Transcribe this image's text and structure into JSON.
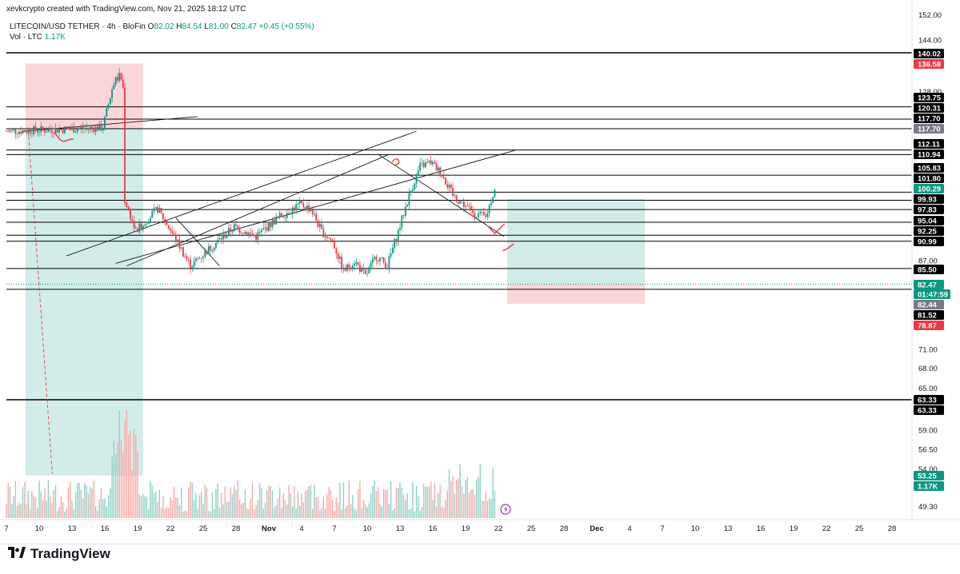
{
  "header": {
    "credit": "xevkcrypto created with TradingView.com, Nov 21, 2025 18:12 UTC"
  },
  "symbol": {
    "name": "LITECOIN/USD TETHER · 4h · BloFin",
    "o_label": "O",
    "o": "82.02",
    "h_label": "H",
    "h": "84.54",
    "l_label": "L",
    "l": "81.00",
    "c_label": "C",
    "c": "82.47",
    "change": "+0.45 (+0.55%)"
  },
  "volume": {
    "label": "Vol · LTC",
    "value": "1.17K"
  },
  "logo": {
    "text": "TradingView"
  },
  "icons": {
    "logo": "tradingview-logo-icon",
    "flash": "flash-icon"
  },
  "colors": {
    "up": "#089981",
    "down": "#f23645",
    "long_profit_zone": "#b2dfdb",
    "short_loss_zone": "#f8c8cc",
    "current_price": "#089981"
  },
  "chart_data": {
    "type": "candlestick",
    "symbol": "LITECOIN/USD TETHER",
    "timeframe": "4h",
    "x_ticks": [
      "7",
      "10",
      "13",
      "16",
      "19",
      "22",
      "25",
      "28",
      "Nov",
      "4",
      "7",
      "10",
      "13",
      "16",
      "19",
      "22",
      "25",
      "28",
      "Dec",
      "4",
      "7",
      "10",
      "13",
      "16",
      "19",
      "22",
      "25",
      "28"
    ],
    "y_ticks": [
      "152.00",
      "144.00",
      "128.00",
      "87.00",
      "71.00",
      "68.00",
      "65.00",
      "59.00",
      "56.50",
      "54.00",
      "49.30"
    ],
    "y_range": [
      48,
      152
    ],
    "y_scale": "log",
    "horizontal_levels": [
      140.02,
      123.75,
      120.31,
      117.7,
      112.11,
      110.94,
      105.83,
      101.8,
      99.93,
      97.83,
      95.04,
      92.25,
      90.99,
      85.5,
      81.52,
      63.33
    ],
    "price_badges": [
      {
        "text": "140.02",
        "kind": "black"
      },
      {
        "text": "136.58",
        "kind": "red"
      },
      {
        "text": "123.75",
        "kind": "black"
      },
      {
        "text": "120.31",
        "kind": "black"
      },
      {
        "text": "117.70",
        "kind": "black"
      },
      {
        "text": "117.70",
        "kind": "gray"
      },
      {
        "text": "112.11",
        "kind": "black"
      },
      {
        "text": "110.94",
        "kind": "black"
      },
      {
        "text": "105.83",
        "kind": "black"
      },
      {
        "text": "101.80",
        "kind": "black"
      },
      {
        "text": "100.29",
        "kind": "green"
      },
      {
        "text": "99.93",
        "kind": "black"
      },
      {
        "text": "97.83",
        "kind": "black"
      },
      {
        "text": "95.04",
        "kind": "black"
      },
      {
        "text": "92.25",
        "kind": "black"
      },
      {
        "text": "90.99",
        "kind": "black"
      },
      {
        "text": "85.50",
        "kind": "black"
      },
      {
        "text": "82.47",
        "kind": "green"
      },
      {
        "text": "01:47:59",
        "kind": "green"
      },
      {
        "text": "82.44",
        "kind": "gray"
      },
      {
        "text": "81.52",
        "kind": "black"
      },
      {
        "text": "78.87",
        "kind": "red"
      },
      {
        "text": "63.33",
        "kind": "black"
      },
      {
        "text": "63.33",
        "kind": "black"
      },
      {
        "text": "53.25",
        "kind": "green"
      },
      {
        "text": "1.17K",
        "kind": "green"
      }
    ],
    "last_price": 82.47,
    "countdown": "01:47:59",
    "ohlc_last": {
      "open": 82.02,
      "high": 84.54,
      "low": 81.0,
      "close": 82.47
    },
    "price_path": [
      [
        0,
        117
      ],
      [
        5,
        117.5
      ],
      [
        9,
        118
      ],
      [
        10,
        131
      ],
      [
        10.6,
        133
      ],
      [
        10.9,
        128
      ],
      [
        11,
        100
      ],
      [
        12,
        93
      ],
      [
        14,
        98
      ],
      [
        16,
        90
      ],
      [
        17,
        86
      ],
      [
        19,
        90
      ],
      [
        21,
        94
      ],
      [
        23,
        92
      ],
      [
        25,
        96
      ],
      [
        27,
        99
      ],
      [
        28,
        98
      ],
      [
        29,
        93
      ],
      [
        30,
        91
      ],
      [
        31,
        85
      ],
      [
        32,
        87
      ],
      [
        33,
        84
      ],
      [
        34,
        88
      ],
      [
        35,
        86
      ],
      [
        36,
        93
      ],
      [
        37,
        101
      ],
      [
        38,
        108
      ],
      [
        39,
        109
      ],
      [
        40,
        106
      ],
      [
        41,
        101
      ],
      [
        42,
        99
      ],
      [
        43,
        97
      ],
      [
        44,
        96
      ],
      [
        45,
        104
      ],
      [
        46,
        98
      ],
      [
        47,
        96
      ],
      [
        48,
        92
      ],
      [
        49,
        90
      ],
      [
        50,
        89
      ],
      [
        51,
        86
      ],
      [
        51.5,
        83
      ],
      [
        52.3,
        82
      ]
    ],
    "positions": [
      {
        "type": "long",
        "entry": 117.7,
        "target": 136.58,
        "stop": 53.25
      },
      {
        "type": "long",
        "entry": 82.44,
        "target": 100.29,
        "stop": 78.87
      }
    ]
  }
}
